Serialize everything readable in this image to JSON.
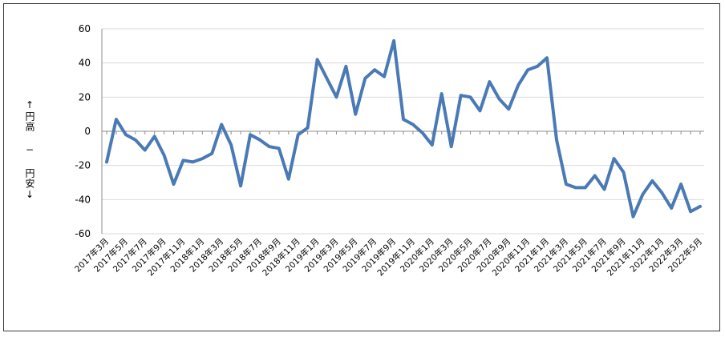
{
  "chart_data": {
    "type": "line",
    "title": "",
    "xlabel": "",
    "ylabel": "↑円高 − 円安↓",
    "ylim": [
      -60,
      60
    ],
    "yticks": [
      "60",
      "40",
      "20",
      "0",
      "-20",
      "-40",
      "-60"
    ],
    "grid": true,
    "legend": "none",
    "x_tick_labels": [
      "2017年3月",
      "2017年5月",
      "2017年7月",
      "2017年9月",
      "2017年11月",
      "2018年1月",
      "2018年3月",
      "2018年5月",
      "2018年7月",
      "2018年9月",
      "2018年11月",
      "2019年1月",
      "2019年3月",
      "2019年5月",
      "2019年7月",
      "2019年9月",
      "2019年11月",
      "2020年1月",
      "2020年3月",
      "2020年5月",
      "2020年7月",
      "2020年9月",
      "2020年11月",
      "2021年1月",
      "2021年3月",
      "2021年5月",
      "2021年7月",
      "2021年9月",
      "2021年11月",
      "2022年1月",
      "2022年3月",
      "2022年5月"
    ],
    "color": "#4a7ab5",
    "values": [
      -18,
      7,
      -2,
      -5,
      -11,
      -3,
      -14,
      -31,
      -17,
      -18,
      -16,
      -13,
      4,
      -8,
      -32,
      -2,
      -5,
      -9,
      -10,
      -28,
      -2,
      2,
      42,
      31,
      20,
      38,
      10,
      31,
      36,
      32,
      53,
      7,
      4,
      -1,
      -8,
      22,
      -9,
      21,
      20,
      12,
      29,
      19,
      13,
      27,
      36,
      38,
      43,
      -5,
      -31,
      -33,
      -33,
      -26,
      -34,
      -16,
      -24,
      -50,
      -37,
      -29,
      -36,
      -45,
      -31,
      -47,
      -44
    ]
  }
}
